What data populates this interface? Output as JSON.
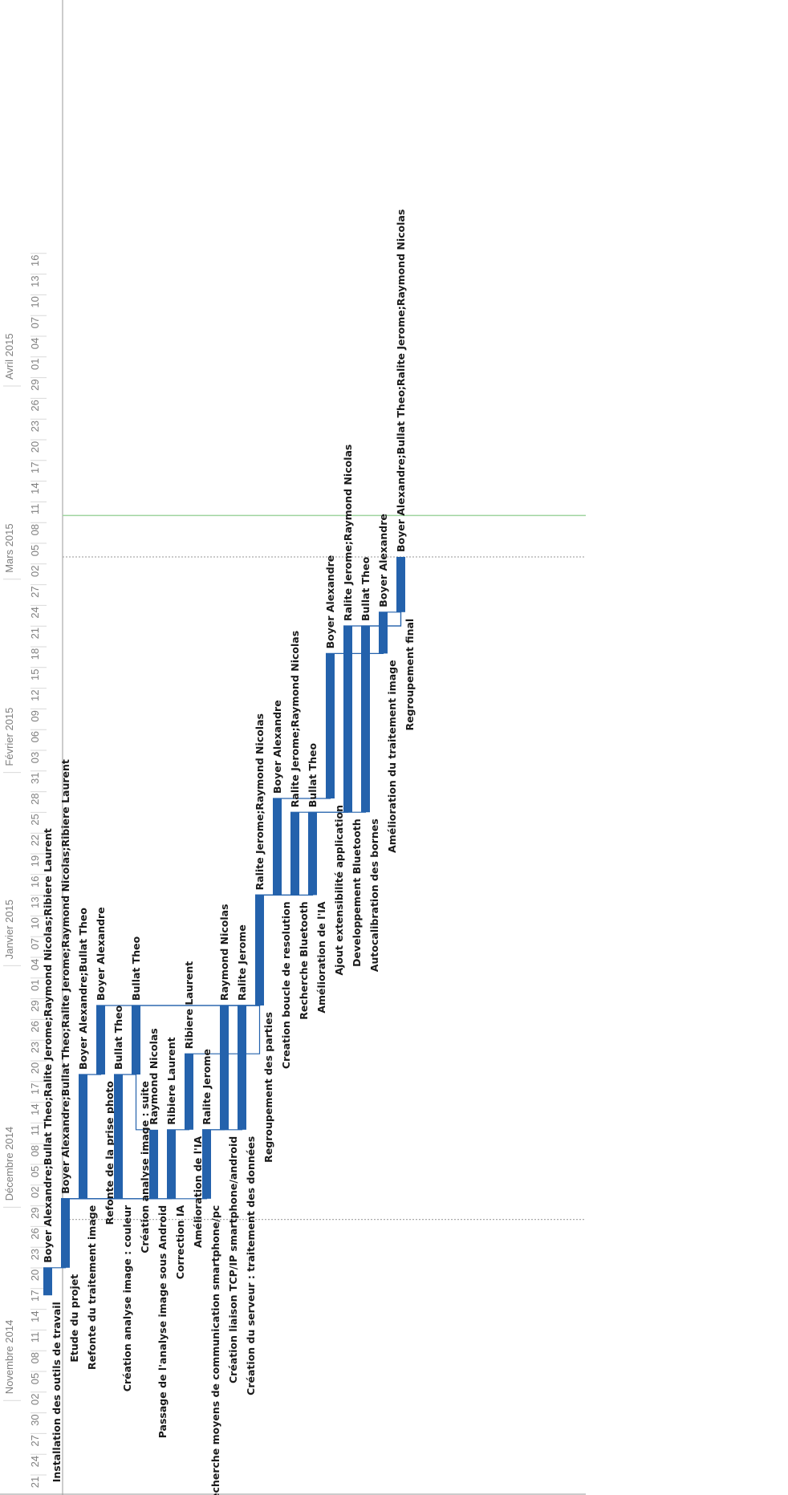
{
  "chart_data": {
    "type": "gantt",
    "orientation": "rotated-90-clockwise",
    "colors": {
      "bar": "#2462ac",
      "link": "#2462ac",
      "today": "#9fd49f",
      "dotted": "#aaaaaa",
      "grid": "#d9d9d9"
    },
    "months": [
      {
        "label": "Novembre 2014",
        "start": "2014-11-02"
      },
      {
        "label": "Décembre 2014",
        "start": "2014-11-30"
      },
      {
        "label": "Janvier 2015",
        "start": "2015-01-04"
      },
      {
        "label": "Février 2015",
        "start": "2015-02-01"
      },
      {
        "label": "Mars 2015",
        "start": "2015-03-01"
      },
      {
        "label": "Avril 2015",
        "start": "2015-03-29"
      }
    ],
    "ticks": [
      {
        "label": "21",
        "date": "2014-10-20"
      },
      {
        "label": "24",
        "date": "2014-10-23"
      },
      {
        "label": "27",
        "date": "2014-10-26"
      },
      {
        "label": "30",
        "date": "2014-10-29"
      },
      {
        "label": "02",
        "date": "2014-11-01"
      },
      {
        "label": "05",
        "date": "2014-11-04"
      },
      {
        "label": "08",
        "date": "2014-11-07"
      },
      {
        "label": "11",
        "date": "2014-11-10"
      },
      {
        "label": "14",
        "date": "2014-11-13"
      },
      {
        "label": "17",
        "date": "2014-11-16"
      },
      {
        "label": "20",
        "date": "2014-11-19"
      },
      {
        "label": "23",
        "date": "2014-11-22"
      },
      {
        "label": "26",
        "date": "2014-11-25"
      },
      {
        "label": "29",
        "date": "2014-11-28"
      },
      {
        "label": "02",
        "date": "2014-12-01"
      },
      {
        "label": "05",
        "date": "2014-12-04"
      },
      {
        "label": "08",
        "date": "2014-12-07"
      },
      {
        "label": "11",
        "date": "2014-12-10"
      },
      {
        "label": "14",
        "date": "2014-12-13"
      },
      {
        "label": "17",
        "date": "2014-12-16"
      },
      {
        "label": "20",
        "date": "2014-12-19"
      },
      {
        "label": "23",
        "date": "2014-12-22"
      },
      {
        "label": "26",
        "date": "2014-12-25"
      },
      {
        "label": "29",
        "date": "2014-12-28"
      },
      {
        "label": "01",
        "date": "2014-12-31"
      },
      {
        "label": "04",
        "date": "2015-01-03"
      },
      {
        "label": "07",
        "date": "2015-01-06"
      },
      {
        "label": "10",
        "date": "2015-01-09"
      },
      {
        "label": "13",
        "date": "2015-01-12"
      },
      {
        "label": "16",
        "date": "2015-01-15"
      },
      {
        "label": "19",
        "date": "2015-01-18"
      },
      {
        "label": "22",
        "date": "2015-01-21"
      },
      {
        "label": "25",
        "date": "2015-01-24"
      },
      {
        "label": "28",
        "date": "2015-01-27"
      },
      {
        "label": "31",
        "date": "2015-01-30"
      },
      {
        "label": "03",
        "date": "2015-02-02"
      },
      {
        "label": "06",
        "date": "2015-02-05"
      },
      {
        "label": "09",
        "date": "2015-02-08"
      },
      {
        "label": "12",
        "date": "2015-02-11"
      },
      {
        "label": "15",
        "date": "2015-02-14"
      },
      {
        "label": "18",
        "date": "2015-02-17"
      },
      {
        "label": "21",
        "date": "2015-02-20"
      },
      {
        "label": "24",
        "date": "2015-02-23"
      },
      {
        "label": "27",
        "date": "2015-02-26"
      },
      {
        "label": "02",
        "date": "2015-03-01"
      },
      {
        "label": "05",
        "date": "2015-03-04"
      },
      {
        "label": "08",
        "date": "2015-03-07"
      },
      {
        "label": "11",
        "date": "2015-03-10"
      },
      {
        "label": "14",
        "date": "2015-03-13"
      },
      {
        "label": "17",
        "date": "2015-03-16"
      },
      {
        "label": "20",
        "date": "2015-03-19"
      },
      {
        "label": "23",
        "date": "2015-03-22"
      },
      {
        "label": "26",
        "date": "2015-03-25"
      },
      {
        "label": "29",
        "date": "2015-03-28"
      },
      {
        "label": "01",
        "date": "2015-03-31"
      },
      {
        "label": "04",
        "date": "2015-04-03"
      },
      {
        "label": "07",
        "date": "2015-04-06"
      },
      {
        "label": "10",
        "date": "2015-04-09"
      },
      {
        "label": "13",
        "date": "2015-04-12"
      },
      {
        "label": "16",
        "date": "2015-04-15"
      }
    ],
    "tasks": [
      {
        "name": "Installation des outils de travail",
        "start": "2014-11-17",
        "end": "2014-11-21",
        "resources": "Boyer Alexandre;Bullat Theo;Ralite Jerome;Raymond Nicolas;Ribiere Laurent"
      },
      {
        "name": "Etude du projet",
        "start": "2014-11-21",
        "end": "2014-12-01",
        "resources": "Boyer Alexandre;Bullat Theo;Ralite Jerome;Raymond Nicolas;Ribiere Laurent"
      },
      {
        "name": "Refonte du traitement image",
        "start": "2014-12-01",
        "end": "2014-12-19",
        "resources": "Boyer Alexandre;Bullat Theo"
      },
      {
        "name": "Refonte de la prise photo",
        "start": "2014-12-19",
        "end": "2014-12-29",
        "resources": "Boyer Alexandre"
      },
      {
        "name": "Création analyse image : couleur",
        "start": "2014-12-01",
        "end": "2014-12-19",
        "resources": "Bullat Theo"
      },
      {
        "name": "Création analyse image : suite",
        "start": "2014-12-19",
        "end": "2014-12-29",
        "resources": "Bullat Theo"
      },
      {
        "name": "Passage de l'analyse image sous Android",
        "start": "2014-12-01",
        "end": "2014-12-11",
        "resources": "Raymond Nicolas"
      },
      {
        "name": "Correction IA",
        "start": "2014-12-01",
        "end": "2014-12-11",
        "resources": "Ribiere Laurent"
      },
      {
        "name": "Amélioration de l'IA",
        "start": "2014-12-11",
        "end": "2014-12-22",
        "resources": "Ribiere Laurent"
      },
      {
        "name": "Recherche moyens de communication smartphone/pc",
        "start": "2014-12-01",
        "end": "2014-12-11",
        "resources": "Ralite Jerome"
      },
      {
        "name": "Création liaison TCP/IP smartphone/android",
        "start": "2014-12-11",
        "end": "2014-12-29",
        "resources": "Raymond Nicolas"
      },
      {
        "name": "Création du serveur : traitement des données",
        "start": "2014-12-11",
        "end": "2014-12-29",
        "resources": "Ralite Jerome"
      },
      {
        "name": "Regroupement des parties",
        "start": "2014-12-29",
        "end": "2015-01-14",
        "resources": "Ralite Jerome;Raymond Nicolas"
      },
      {
        "name": "Creation boucle de resolution",
        "start": "2015-01-14",
        "end": "2015-01-28",
        "resources": "Boyer Alexandre"
      },
      {
        "name": "Recherche Bluetooth",
        "start": "2015-01-14",
        "end": "2015-01-26",
        "resources": "Ralite Jerome;Raymond Nicolas"
      },
      {
        "name": "Amélioration de l'IA",
        "start": "2015-01-14",
        "end": "2015-01-26",
        "resources": "Bullat Theo"
      },
      {
        "name": "Ajout extensibilité application",
        "start": "2015-01-28",
        "end": "2015-02-18",
        "resources": "Boyer Alexandre"
      },
      {
        "name": "Developpement Bluetooth",
        "start": "2015-01-26",
        "end": "2015-02-22",
        "resources": "Ralite Jerome;Raymond Nicolas"
      },
      {
        "name": "Autocalibration des bornes",
        "start": "2015-01-26",
        "end": "2015-02-22",
        "resources": "Bullat Theo"
      },
      {
        "name": "Amélioration du traitement image",
        "start": "2015-02-18",
        "end": "2015-02-24",
        "resources": "Boyer Alexandre"
      },
      {
        "name": "Regroupement final",
        "start": "2015-02-24",
        "end": "2015-03-04",
        "resources": "Boyer Alexandre;Bullat Theo;Ralite Jerome;Raymond Nicolas"
      }
    ],
    "links": [
      [
        0,
        1
      ],
      [
        1,
        2
      ],
      [
        1,
        4
      ],
      [
        1,
        6
      ],
      [
        1,
        7
      ],
      [
        1,
        9
      ],
      [
        2,
        3
      ],
      [
        4,
        5
      ],
      [
        6,
        5
      ],
      [
        7,
        8
      ],
      [
        9,
        10
      ],
      [
        9,
        11
      ],
      [
        3,
        12
      ],
      [
        5,
        12
      ],
      [
        8,
        12
      ],
      [
        10,
        12
      ],
      [
        11,
        12
      ],
      [
        12,
        13
      ],
      [
        12,
        14
      ],
      [
        12,
        15
      ],
      [
        13,
        16
      ],
      [
        14,
        17
      ],
      [
        15,
        18
      ],
      [
        16,
        19
      ],
      [
        17,
        20
      ],
      [
        18,
        20
      ],
      [
        19,
        20
      ]
    ],
    "today_date": "2015-03-10",
    "dotted_dates": [
      "2014-11-28",
      "2015-03-04"
    ]
  }
}
